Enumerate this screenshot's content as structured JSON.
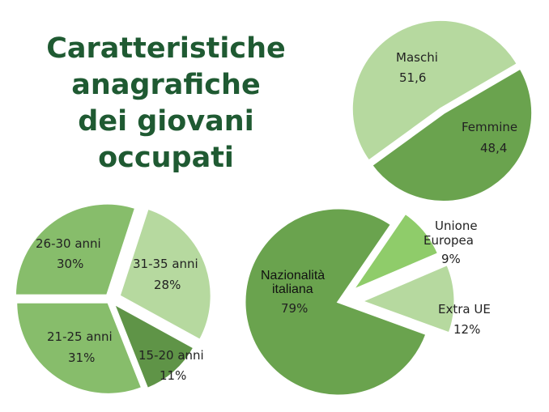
{
  "title_lines": [
    "Caratteristiche",
    "anagrafiche",
    "dei giovani",
    "occupati"
  ],
  "colors": {
    "title": "#1f5a32",
    "dark_green": "#6aa34e",
    "medium_green": "#87bd6b",
    "light_green": "#b6d99f",
    "darker_green": "#5f9447",
    "bright_green": "#8fcc6a"
  },
  "chart_data": [
    {
      "type": "pie",
      "title": "",
      "slices": [
        {
          "label": "Maschi",
          "value_text": "51,6",
          "value": 51.6,
          "color": "#b6d99f"
        },
        {
          "label": "Femmine",
          "value_text": "48,4",
          "value": 48.4,
          "color": "#6aa34e"
        }
      ]
    },
    {
      "type": "pie",
      "title": "",
      "slices": [
        {
          "label": "26-30 anni",
          "value_text": "30%",
          "value": 30,
          "color": "#87bd6b"
        },
        {
          "label": "31-35 anni",
          "value_text": "28%",
          "value": 28,
          "color": "#b6d99f"
        },
        {
          "label": "15-20 anni",
          "value_text": "11%",
          "value": 11,
          "color": "#5f9447"
        },
        {
          "label": "21-25 anni",
          "value_text": "31%",
          "value": 31,
          "color": "#87bd6b"
        }
      ]
    },
    {
      "type": "pie",
      "title": "",
      "slices": [
        {
          "label": "Nazionalità italiana",
          "label_lines": [
            "Nazionalità",
            "italiana"
          ],
          "value_text": "79%",
          "value": 79,
          "color": "#6aa34e"
        },
        {
          "label": "Unione Europea",
          "label_lines": [
            "Unione",
            "Europea"
          ],
          "value_text": "9%",
          "value": 9,
          "color": "#8fcc6a"
        },
        {
          "label": "Extra UE",
          "label_lines": [
            "Extra UE"
          ],
          "value_text": "12%",
          "value": 12,
          "color": "#b6d99f"
        }
      ]
    }
  ]
}
